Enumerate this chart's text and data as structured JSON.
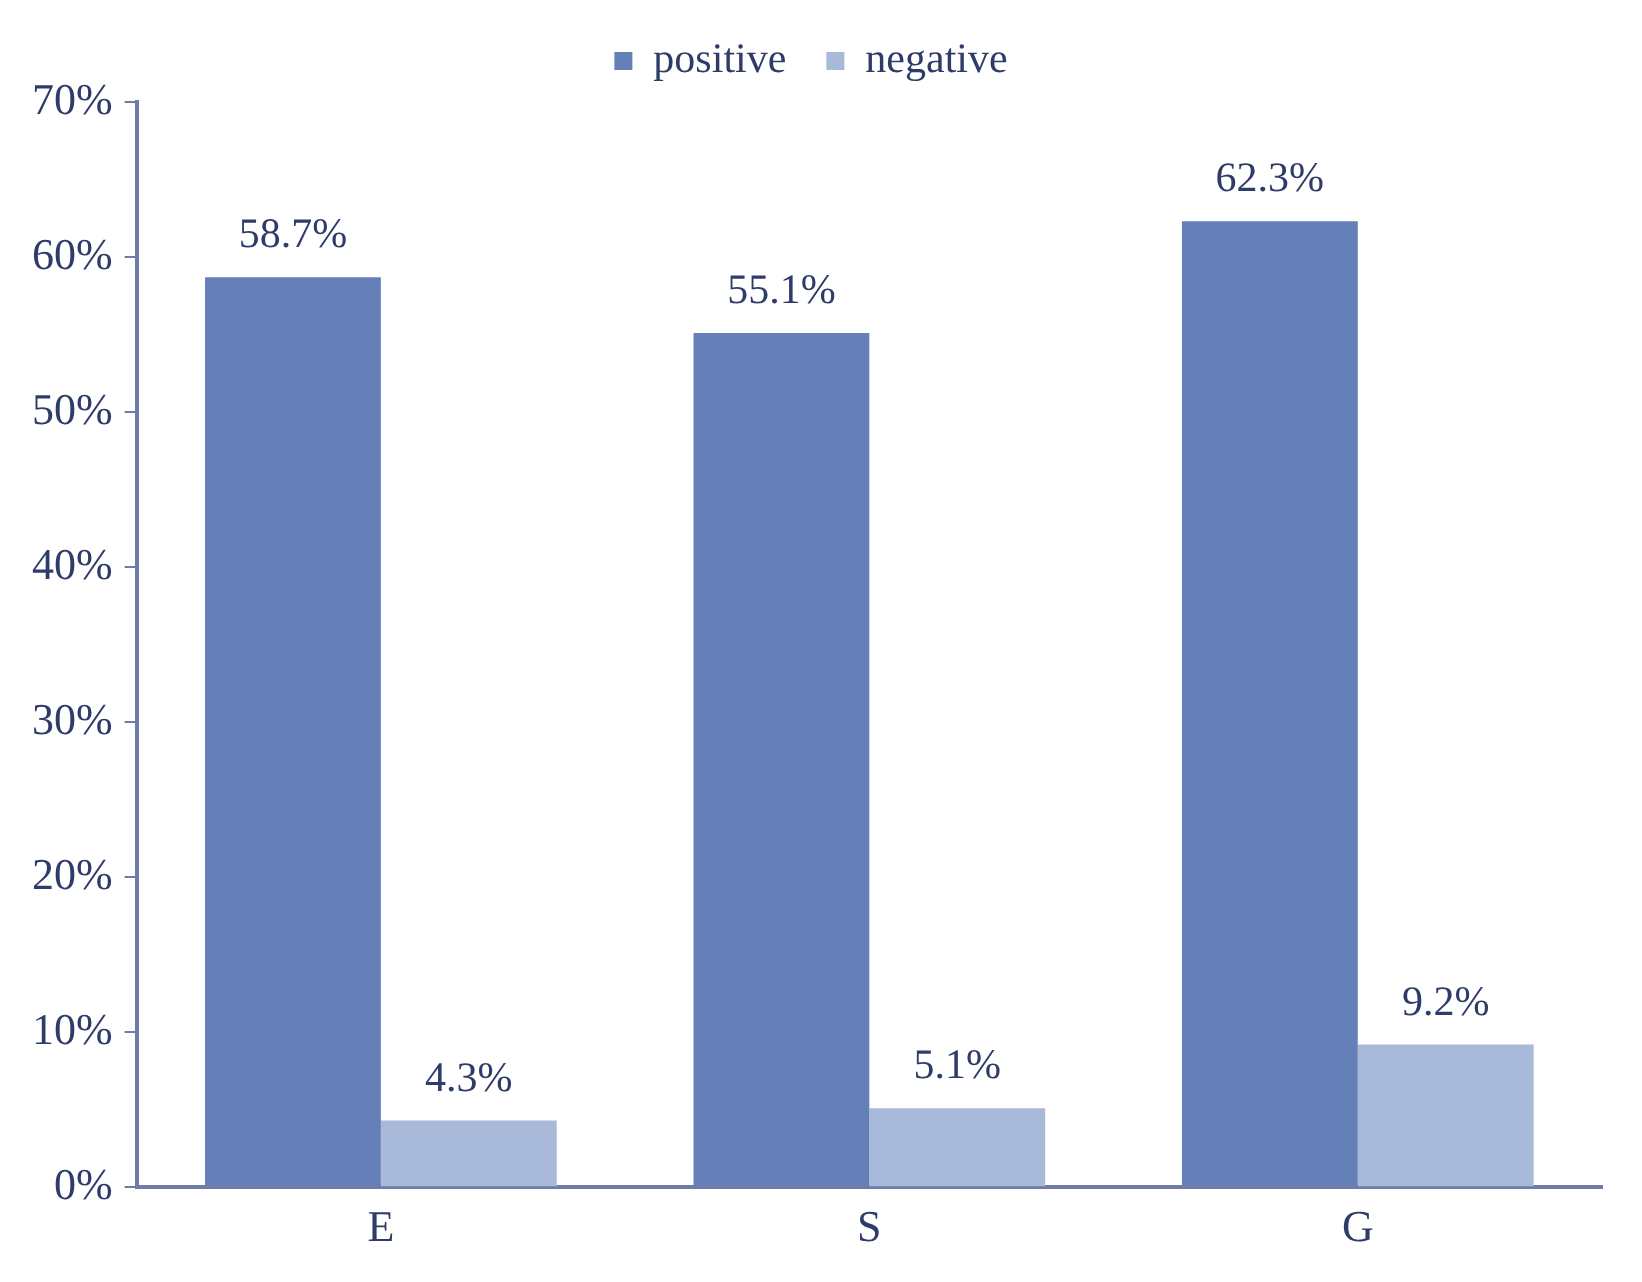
{
  "chart_data": {
    "type": "bar",
    "categories": [
      "E",
      "S",
      "G"
    ],
    "series": [
      {
        "name": "positive",
        "color": "#6580b8",
        "values": [
          58.7,
          55.1,
          62.3
        ],
        "value_labels": [
          "58.7%",
          "55.1%",
          "62.3%"
        ]
      },
      {
        "name": "negative",
        "color": "#a9b9d9",
        "values": [
          4.3,
          5.1,
          9.2
        ],
        "value_labels": [
          "4.3%",
          "5.1%",
          "9.2%"
        ]
      }
    ],
    "ylim": [
      0,
      70
    ],
    "yticks": [
      {
        "value": 0,
        "label": "0%"
      },
      {
        "value": 10,
        "label": "10%"
      },
      {
        "value": 20,
        "label": "20%"
      },
      {
        "value": 30,
        "label": "30%"
      },
      {
        "value": 40,
        "label": "40%"
      },
      {
        "value": 50,
        "label": "50%"
      },
      {
        "value": 60,
        "label": "60%"
      },
      {
        "value": 70,
        "label": "70%"
      }
    ],
    "grid": false,
    "legend": "top"
  }
}
